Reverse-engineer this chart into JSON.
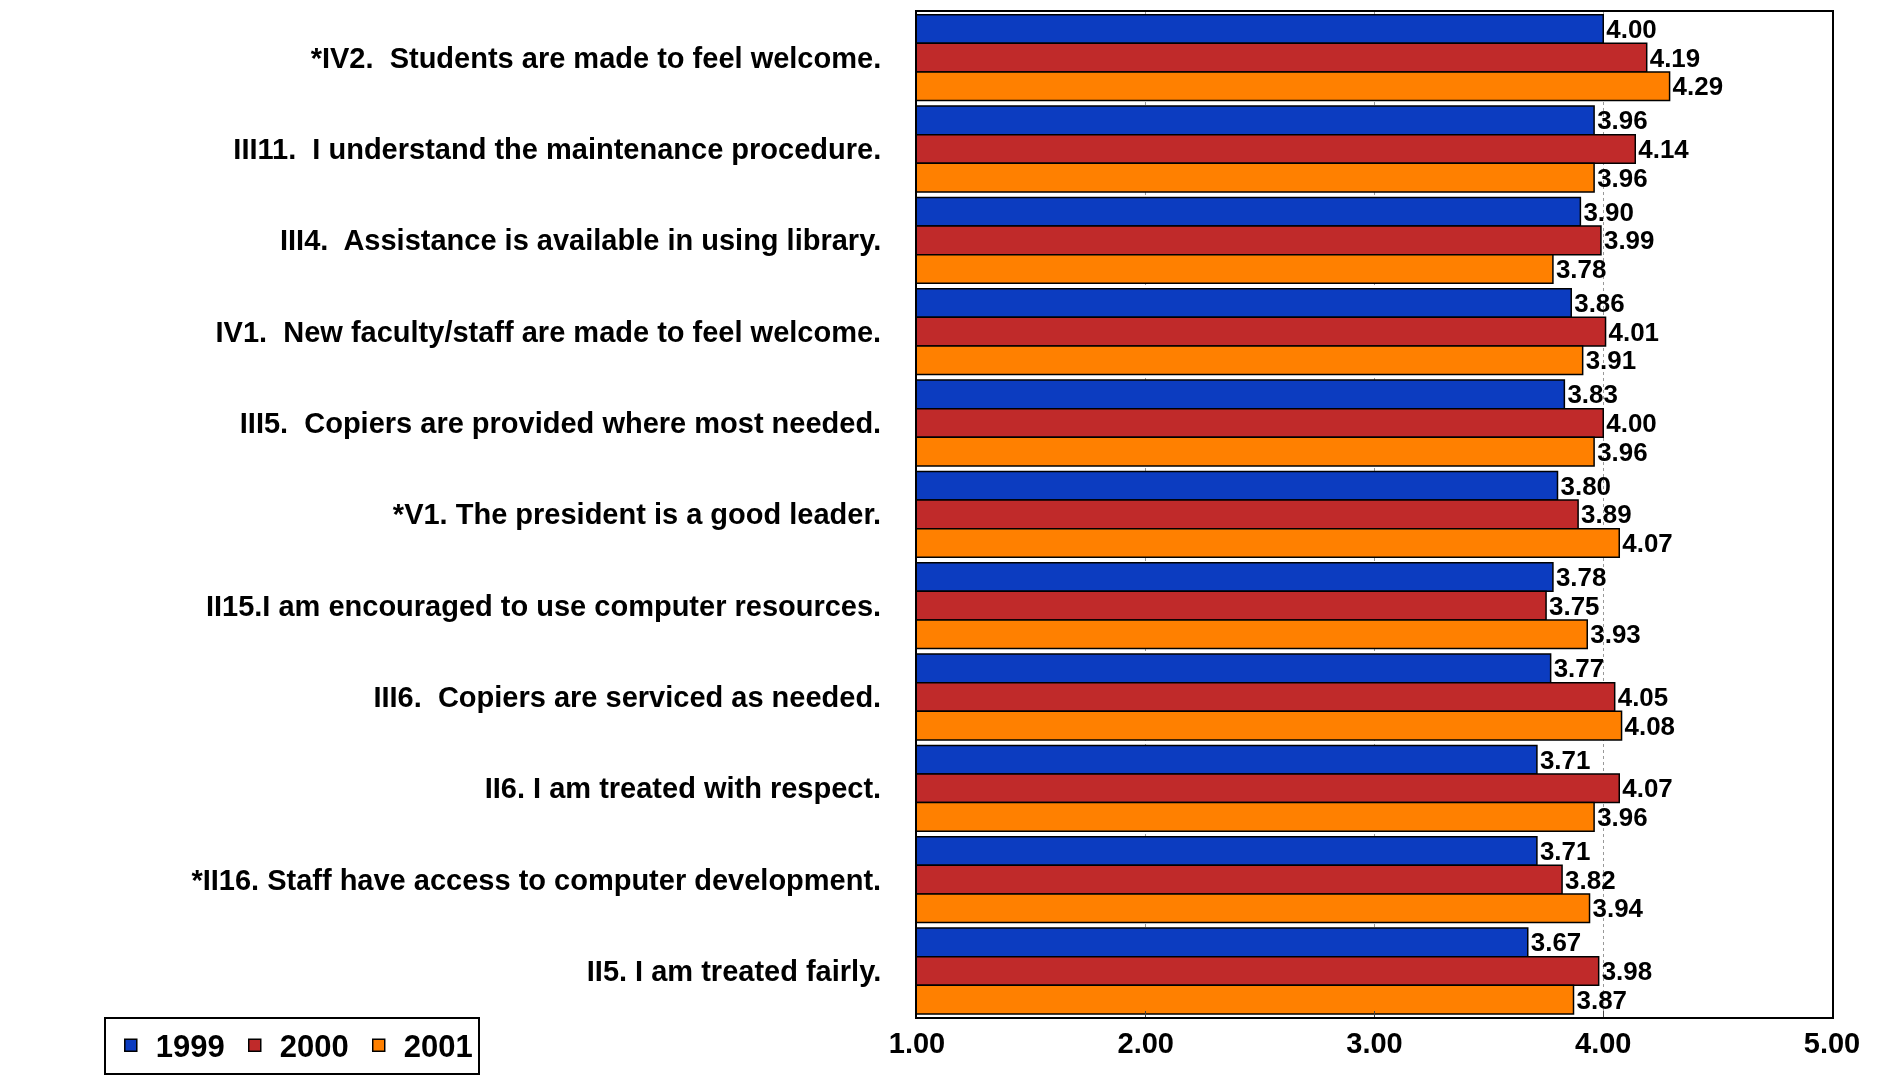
{
  "chart_data": {
    "type": "bar",
    "orientation": "horizontal",
    "categories": [
      "*IV2.  Students are made to feel welcome.",
      "III11.  I understand the maintenance procedure.",
      "III4.  Assistance is available in using library.",
      "IV1.  New faculty/staff are made to feel welcome.",
      "III5.  Copiers are provided where most needed.",
      "*V1. The president is a good leader.",
      "II15.I am encouraged to use computer resources.",
      "III6.  Copiers are serviced as needed.",
      "II6. I am treated with respect.",
      "*II16. Staff have access to computer development.",
      "II5. I am treated fairly."
    ],
    "series": [
      {
        "name": "1999",
        "color": "#0c3cc0",
        "values": [
          4.0,
          3.96,
          3.9,
          3.86,
          3.83,
          3.8,
          3.78,
          3.77,
          3.71,
          3.71,
          3.67
        ],
        "value_labels": [
          "4.00",
          "3.96",
          "3.90",
          "3.86",
          "3.83",
          "3.80",
          "3.78",
          "3.77",
          "3.71",
          "3.71",
          "3.67"
        ]
      },
      {
        "name": "2000",
        "color": "#c02a2a",
        "values": [
          4.19,
          4.14,
          3.99,
          4.01,
          4.0,
          3.89,
          3.75,
          4.05,
          4.07,
          3.82,
          3.98
        ],
        "value_labels": [
          "4.19",
          "4.14",
          "3.99",
          "4.01",
          "4.00",
          "3.89",
          "3.75",
          "4.05",
          "4.07",
          "3.82",
          "3.98"
        ]
      },
      {
        "name": "2001",
        "color": "#ff8000",
        "values": [
          4.29,
          3.96,
          3.78,
          3.91,
          3.96,
          4.07,
          3.93,
          4.08,
          3.96,
          3.94,
          3.87
        ],
        "value_labels": [
          "4.29",
          "3.96",
          "3.78",
          "3.91",
          "3.96",
          "4.07",
          "3.93",
          "4.08",
          "3.96",
          "3.94",
          "3.87"
        ]
      }
    ],
    "xlim": [
      1,
      5
    ],
    "xticks": [
      {
        "value": 1,
        "label": "1.00"
      },
      {
        "value": 2,
        "label": "2.00"
      },
      {
        "value": 3,
        "label": "3.00"
      },
      {
        "value": 4,
        "label": "4.00"
      },
      {
        "value": 5,
        "label": "5.00"
      }
    ],
    "grid": "x",
    "legend": "bottom left"
  }
}
